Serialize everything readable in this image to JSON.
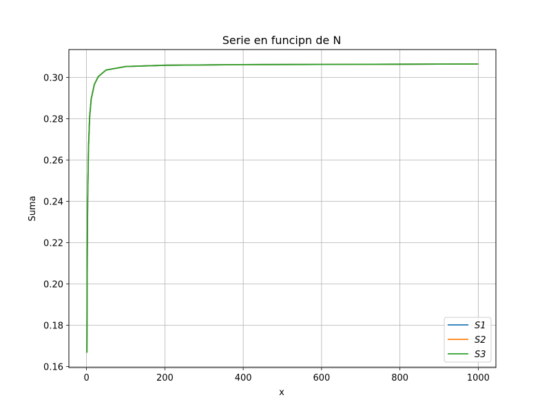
{
  "chart_data": {
    "type": "line",
    "title": "Serie en funcipn de N",
    "xlabel": "x",
    "ylabel": "Suma",
    "xlim": [
      -45,
      1045
    ],
    "ylim": [
      0.1595,
      0.3135
    ],
    "x_ticks": [
      0,
      200,
      400,
      600,
      800,
      1000
    ],
    "y_ticks": [
      0.16,
      0.18,
      0.2,
      0.22,
      0.24,
      0.26,
      0.28,
      0.3
    ],
    "x_tick_labels": [
      "0",
      "200",
      "400",
      "600",
      "800",
      "1000"
    ],
    "y_tick_labels": [
      "0.16",
      "0.18",
      "0.20",
      "0.22",
      "0.24",
      "0.26",
      "0.28",
      "0.30"
    ],
    "grid": true,
    "legend_position": "lower-right",
    "series": [
      {
        "name": "S1",
        "color": "#1f77b4",
        "x": [
          1,
          2,
          3,
          5,
          8,
          12,
          20,
          30,
          50,
          100,
          200,
          400,
          600,
          800,
          1000
        ],
        "y": [
          0.1667,
          0.2167,
          0.2417,
          0.2657,
          0.2808,
          0.2896,
          0.2966,
          0.3004,
          0.3036,
          0.3053,
          0.3059,
          0.3062,
          0.3063,
          0.3064,
          0.3065
        ]
      },
      {
        "name": "S2",
        "color": "#ff7f0e",
        "x": [
          1,
          2,
          3,
          5,
          8,
          12,
          20,
          30,
          50,
          100,
          200,
          400,
          600,
          800,
          1000
        ],
        "y": [
          0.1667,
          0.2167,
          0.2417,
          0.2657,
          0.2808,
          0.2896,
          0.2966,
          0.3004,
          0.3036,
          0.3053,
          0.3059,
          0.3062,
          0.3063,
          0.3064,
          0.3065
        ]
      },
      {
        "name": "S3",
        "color": "#2ca02c",
        "x": [
          1,
          2,
          3,
          5,
          8,
          12,
          20,
          30,
          50,
          100,
          200,
          400,
          600,
          800,
          1000
        ],
        "y": [
          0.1667,
          0.2167,
          0.2417,
          0.2657,
          0.2808,
          0.2896,
          0.2966,
          0.3004,
          0.3036,
          0.3053,
          0.3059,
          0.3062,
          0.3063,
          0.3064,
          0.3065
        ]
      }
    ]
  }
}
